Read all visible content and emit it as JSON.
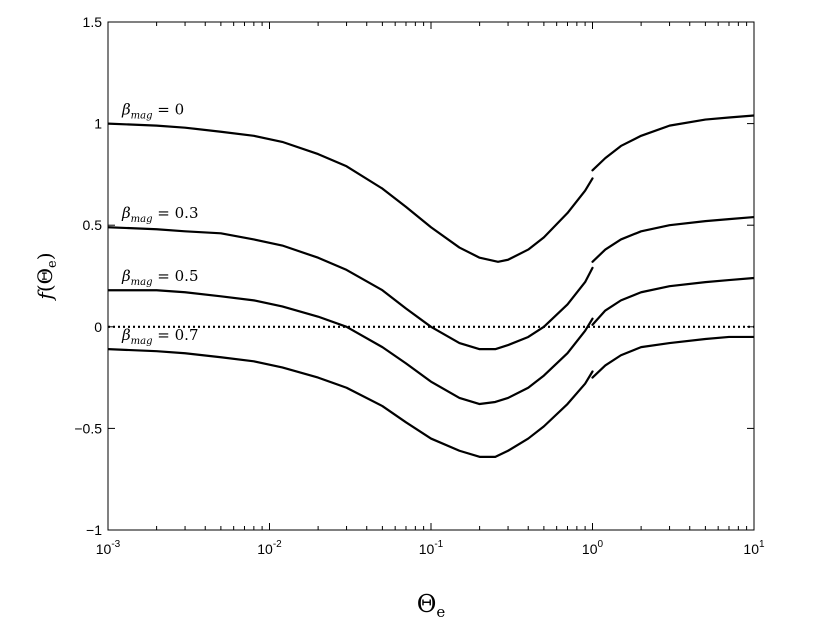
{
  "chart_data": {
    "type": "line",
    "xlabel": {
      "base": "Θ",
      "sub": "e"
    },
    "ylabel": {
      "func": "f",
      "open": "(",
      "base": "Θ",
      "sub": "e",
      "close": ")"
    },
    "x_scale": "log",
    "xlim": [
      0.001,
      10
    ],
    "ylim": [
      -1,
      1.5
    ],
    "x_ticks": [
      {
        "value": 0.001,
        "base": "10",
        "exp": "-3"
      },
      {
        "value": 0.01,
        "base": "10",
        "exp": "-2"
      },
      {
        "value": 0.1,
        "base": "10",
        "exp": "-1"
      },
      {
        "value": 1,
        "base": "10",
        "exp": "0"
      },
      {
        "value": 10,
        "base": "10",
        "exp": "1"
      }
    ],
    "y_ticks": [
      {
        "value": -1,
        "label": "−1"
      },
      {
        "value": -0.5,
        "label": "−0.5"
      },
      {
        "value": 0,
        "label": "0"
      },
      {
        "value": 0.5,
        "label": "0.5"
      },
      {
        "value": 1,
        "label": "1"
      },
      {
        "value": 1.5,
        "label": "1.5"
      }
    ],
    "grid": false,
    "reference_line": {
      "y": 0,
      "style": "dotted"
    },
    "series": [
      {
        "label": {
          "sym": "β",
          "sub": "mag",
          "rest": " = 0"
        },
        "color": "#000000",
        "points": [
          [
            0.001,
            1.0
          ],
          [
            0.002,
            0.99
          ],
          [
            0.003,
            0.98
          ],
          [
            0.005,
            0.96
          ],
          [
            0.008,
            0.94
          ],
          [
            0.012,
            0.91
          ],
          [
            0.02,
            0.85
          ],
          [
            0.03,
            0.79
          ],
          [
            0.05,
            0.68
          ],
          [
            0.07,
            0.59
          ],
          [
            0.1,
            0.49
          ],
          [
            0.15,
            0.39
          ],
          [
            0.2,
            0.34
          ],
          [
            0.26,
            0.32
          ],
          [
            0.3,
            0.33
          ],
          [
            0.4,
            0.38
          ],
          [
            0.5,
            0.44
          ],
          [
            0.7,
            0.56
          ],
          [
            0.9,
            0.67
          ],
          [
            1.0,
            0.73
          ]
        ],
        "points_right": [
          [
            1.0,
            0.77
          ],
          [
            1.2,
            0.83
          ],
          [
            1.5,
            0.89
          ],
          [
            2.0,
            0.94
          ],
          [
            3.0,
            0.99
          ],
          [
            5.0,
            1.02
          ],
          [
            7.0,
            1.03
          ],
          [
            10.0,
            1.04
          ]
        ]
      },
      {
        "label": {
          "sym": "β",
          "sub": "mag",
          "rest": " = 0.3"
        },
        "color": "#000000",
        "points": [
          [
            0.001,
            0.49
          ],
          [
            0.002,
            0.48
          ],
          [
            0.003,
            0.47
          ],
          [
            0.005,
            0.46
          ],
          [
            0.008,
            0.43
          ],
          [
            0.012,
            0.4
          ],
          [
            0.02,
            0.34
          ],
          [
            0.03,
            0.28
          ],
          [
            0.05,
            0.18
          ],
          [
            0.07,
            0.09
          ],
          [
            0.1,
            0.0
          ],
          [
            0.15,
            -0.08
          ],
          [
            0.2,
            -0.11
          ],
          [
            0.25,
            -0.11
          ],
          [
            0.3,
            -0.09
          ],
          [
            0.4,
            -0.05
          ],
          [
            0.5,
            0.0
          ],
          [
            0.7,
            0.11
          ],
          [
            0.9,
            0.22
          ],
          [
            1.0,
            0.29
          ]
        ],
        "points_right": [
          [
            1.0,
            0.32
          ],
          [
            1.2,
            0.38
          ],
          [
            1.5,
            0.43
          ],
          [
            2.0,
            0.47
          ],
          [
            3.0,
            0.5
          ],
          [
            5.0,
            0.52
          ],
          [
            7.0,
            0.53
          ],
          [
            10.0,
            0.54
          ]
        ]
      },
      {
        "label": {
          "sym": "β",
          "sub": "mag",
          "rest": " = 0.5"
        },
        "color": "#000000",
        "points": [
          [
            0.001,
            0.18
          ],
          [
            0.002,
            0.18
          ],
          [
            0.003,
            0.17
          ],
          [
            0.005,
            0.15
          ],
          [
            0.008,
            0.13
          ],
          [
            0.012,
            0.1
          ],
          [
            0.02,
            0.05
          ],
          [
            0.03,
            0.0
          ],
          [
            0.05,
            -0.1
          ],
          [
            0.07,
            -0.18
          ],
          [
            0.1,
            -0.27
          ],
          [
            0.15,
            -0.35
          ],
          [
            0.2,
            -0.38
          ],
          [
            0.25,
            -0.37
          ],
          [
            0.3,
            -0.35
          ],
          [
            0.4,
            -0.3
          ],
          [
            0.5,
            -0.24
          ],
          [
            0.7,
            -0.13
          ],
          [
            0.9,
            -0.02
          ],
          [
            1.0,
            0.04
          ]
        ],
        "points_right": [
          [
            1.0,
            0.01
          ],
          [
            1.2,
            0.08
          ],
          [
            1.5,
            0.13
          ],
          [
            2.0,
            0.17
          ],
          [
            3.0,
            0.2
          ],
          [
            5.0,
            0.22
          ],
          [
            7.0,
            0.23
          ],
          [
            10.0,
            0.24
          ]
        ]
      },
      {
        "label": {
          "sym": "β",
          "sub": "mag",
          "rest": " = 0.7"
        },
        "color": "#000000",
        "points": [
          [
            0.001,
            -0.11
          ],
          [
            0.002,
            -0.12
          ],
          [
            0.003,
            -0.13
          ],
          [
            0.005,
            -0.15
          ],
          [
            0.008,
            -0.17
          ],
          [
            0.012,
            -0.2
          ],
          [
            0.02,
            -0.25
          ],
          [
            0.03,
            -0.3
          ],
          [
            0.05,
            -0.39
          ],
          [
            0.07,
            -0.47
          ],
          [
            0.1,
            -0.55
          ],
          [
            0.15,
            -0.61
          ],
          [
            0.2,
            -0.64
          ],
          [
            0.25,
            -0.64
          ],
          [
            0.3,
            -0.61
          ],
          [
            0.4,
            -0.55
          ],
          [
            0.5,
            -0.49
          ],
          [
            0.7,
            -0.38
          ],
          [
            0.9,
            -0.28
          ],
          [
            1.0,
            -0.22
          ]
        ],
        "points_right": [
          [
            1.0,
            -0.25
          ],
          [
            1.2,
            -0.19
          ],
          [
            1.5,
            -0.14
          ],
          [
            2.0,
            -0.1
          ],
          [
            3.0,
            -0.08
          ],
          [
            5.0,
            -0.06
          ],
          [
            7.0,
            -0.05
          ],
          [
            10.0,
            -0.05
          ]
        ]
      }
    ]
  }
}
